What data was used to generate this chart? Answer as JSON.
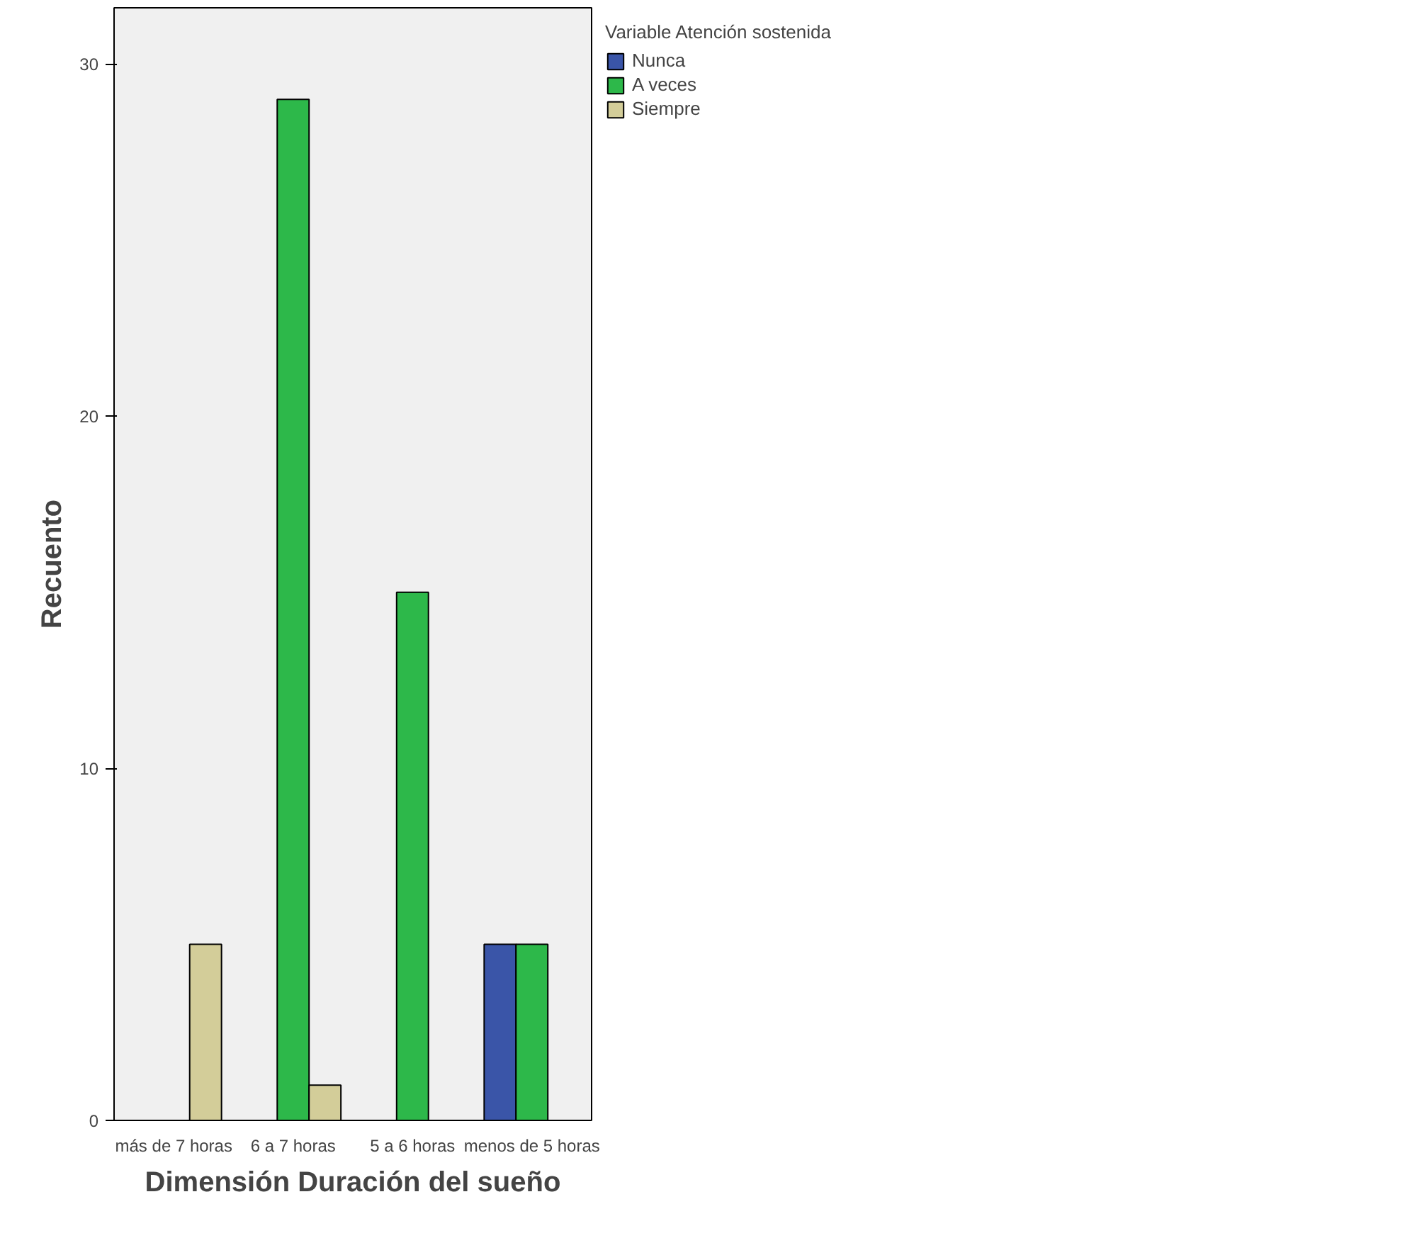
{
  "chart_data": {
    "type": "bar",
    "xlabel": "Dimensión Duración del sueño",
    "ylabel": "Recuento",
    "legend_title": "Variable Atención sostenida",
    "categories": [
      "más de 7 horas",
      "6 a 7 horas",
      "5 a 6 horas",
      "menos de 5 horas"
    ],
    "series": [
      {
        "name": "Nunca",
        "color": "#3a55a8",
        "values": [
          null,
          null,
          null,
          5
        ]
      },
      {
        "name": "A veces",
        "color": "#2db84a",
        "values": [
          null,
          29,
          15,
          5
        ]
      },
      {
        "name": "Siempre",
        "color": "#d3cd99",
        "values": [
          5,
          1,
          null,
          null
        ]
      }
    ],
    "ylim": [
      0,
      31.6
    ],
    "yticks": [
      0,
      10,
      20,
      30
    ],
    "grid": false,
    "legend": "top right"
  }
}
